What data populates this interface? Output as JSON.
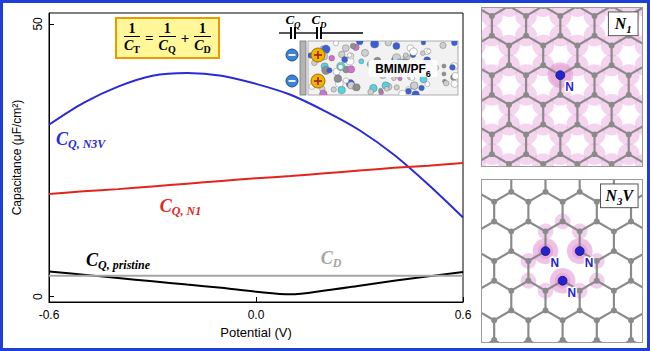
{
  "chart_data": {
    "type": "line",
    "x_label": "Potential (V)",
    "y_label": "Capacitance (μF/cm²)",
    "xlim": [
      -0.6,
      0.6
    ],
    "xticks": [
      -0.6,
      {
        "value": 0,
        "label": "0.0"
      },
      0.6
    ],
    "ylim": [
      -1,
      52
    ],
    "yticks": [
      0,
      50
    ],
    "grid": false,
    "x": [
      -0.6,
      -0.5,
      -0.4,
      -0.3,
      -0.2,
      -0.1,
      0,
      0.1,
      0.2,
      0.3,
      0.4,
      0.5,
      0.6
    ],
    "series": [
      {
        "name": "CQ, N3V",
        "color": "#2a2ad8",
        "values": [
          31.5,
          35.5,
          38.5,
          40.5,
          41,
          40.5,
          39,
          37,
          34,
          30.5,
          26,
          20.5,
          14.5
        ]
      },
      {
        "name": "CQ, N1",
        "color": "#e3241b",
        "values": [
          18.8,
          19.3,
          19.7,
          20.2,
          20.7,
          21.2,
          21.7,
          22.1,
          22.6,
          23.1,
          23.6,
          24.0,
          24.5
        ]
      },
      {
        "name": "CQ, pristine",
        "color": "#000000",
        "values": [
          4.6,
          4.0,
          3.4,
          2.8,
          2.2,
          1.6,
          0.9,
          0.4,
          1.1,
          2.0,
          2.9,
          3.7,
          4.5
        ]
      },
      {
        "name": "CD",
        "color": "#a6a6a6",
        "values": [
          3.8,
          3.8,
          3.8,
          3.8,
          3.8,
          3.8,
          3.8,
          3.8,
          3.8,
          3.8,
          3.8,
          3.8,
          3.8
        ]
      }
    ],
    "annotations": {
      "formula": {
        "lhs": {
          "num": "1",
          "den": "CT"
        },
        "rhs": [
          {
            "num": "1",
            "den": "CQ"
          },
          {
            "num": "1",
            "den": "CD"
          }
        ],
        "operators": [
          "=",
          "+"
        ]
      },
      "circuit_labels": [
        "CQ",
        "CD"
      ],
      "electrolyte": "BMIM/PF6"
    }
  },
  "panels": [
    {
      "label": "N1",
      "atom_labels": [
        "N"
      ]
    },
    {
      "label": "N3V",
      "atom_labels": [
        "N",
        "N",
        "N"
      ]
    }
  ]
}
